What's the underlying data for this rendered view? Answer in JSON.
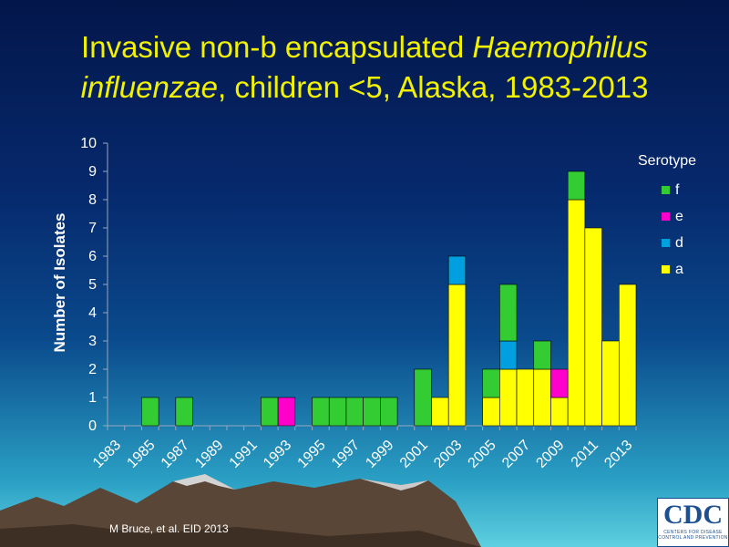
{
  "title": {
    "part1": "Invasive non-b encapsulated ",
    "italic1": "Haemophilus",
    "italic2": "influenzae",
    "part2": ", children <5, Alaska, 1983-2013"
  },
  "source": "M Bruce, et al. EID 2013",
  "logo": {
    "text": "CDC",
    "subtext": "CENTERS FOR DISEASE CONTROL AND PREVENTION"
  },
  "colors": {
    "f": "#33cc33",
    "e": "#ff00cc",
    "d": "#00a0e0",
    "a": "#ffff00",
    "axis": "#9aa6c0",
    "text": "#ffffff",
    "title": "#f2f200"
  },
  "chart_data": {
    "type": "bar",
    "stacked": true,
    "ylabel": "Number of Isolates",
    "ylim": [
      0,
      10
    ],
    "yticks": [
      0,
      1,
      2,
      3,
      4,
      5,
      6,
      7,
      8,
      9,
      10
    ],
    "grid": false,
    "legend_title": "Serotype",
    "legend_position": "right",
    "categories": [
      "1983",
      "1984",
      "1985",
      "1986",
      "1987",
      "1988",
      "1989",
      "1990",
      "1991",
      "1992",
      "1993",
      "1994",
      "1995",
      "1996",
      "1997",
      "1998",
      "1999",
      "2000",
      "2001",
      "2002",
      "2003",
      "2004",
      "2005",
      "2006",
      "2007",
      "2008",
      "2009",
      "2010",
      "2011",
      "2012",
      "2013"
    ],
    "x_tick_labels": [
      "1983",
      "1985",
      "1987",
      "1989",
      "1991",
      "1993",
      "1995",
      "1997",
      "1999",
      "2001",
      "2003",
      "2005",
      "2007",
      "2009",
      "2011",
      "2013"
    ],
    "series": [
      {
        "name": "a",
        "color": "#ffff00",
        "values": [
          0,
          0,
          0,
          0,
          0,
          0,
          0,
          0,
          0,
          0,
          0,
          0,
          0,
          0,
          0,
          0,
          0,
          0,
          0,
          1,
          5,
          0,
          1,
          2,
          2,
          2,
          1,
          8,
          7,
          3,
          5
        ]
      },
      {
        "name": "d",
        "color": "#00a0e0",
        "values": [
          0,
          0,
          0,
          0,
          0,
          0,
          0,
          0,
          0,
          0,
          0,
          0,
          0,
          0,
          0,
          0,
          0,
          0,
          0,
          0,
          1,
          0,
          0,
          1,
          0,
          0,
          0,
          0,
          0,
          0,
          0
        ]
      },
      {
        "name": "e",
        "color": "#ff00cc",
        "values": [
          0,
          0,
          0,
          0,
          0,
          0,
          0,
          0,
          0,
          0,
          1,
          0,
          0,
          0,
          0,
          0,
          0,
          0,
          0,
          0,
          0,
          0,
          0,
          0,
          0,
          0,
          1,
          0,
          0,
          0,
          0
        ]
      },
      {
        "name": "f",
        "color": "#33cc33",
        "values": [
          0,
          0,
          1,
          0,
          1,
          0,
          0,
          0,
          0,
          1,
          0,
          0,
          1,
          1,
          1,
          1,
          1,
          0,
          2,
          0,
          0,
          0,
          1,
          2,
          0,
          1,
          0,
          1,
          0,
          0,
          0
        ]
      }
    ],
    "legend_order": [
      "f",
      "e",
      "d",
      "a"
    ]
  }
}
